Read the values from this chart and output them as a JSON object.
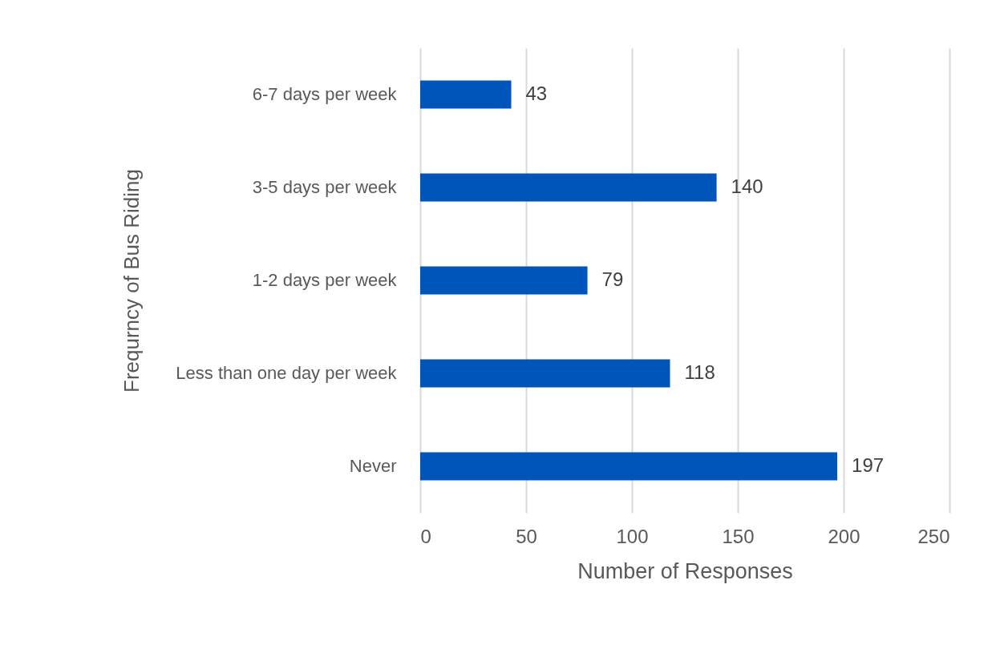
{
  "chart_data": {
    "type": "bar",
    "orientation": "horizontal",
    "xlabel": "Number of Responses",
    "ylabel": "Frequrncy of Bus Riding",
    "categories": [
      "6-7 days per week",
      "3-5 days per week",
      "1-2 days per week",
      "Less than one day per week",
      "Never"
    ],
    "values": [
      43,
      140,
      79,
      118,
      197
    ],
    "color": "#0055bb",
    "xlim": [
      0,
      250
    ],
    "xticks": [
      0,
      50,
      100,
      150,
      200,
      250
    ],
    "grid": "x",
    "data_labels": true
  }
}
